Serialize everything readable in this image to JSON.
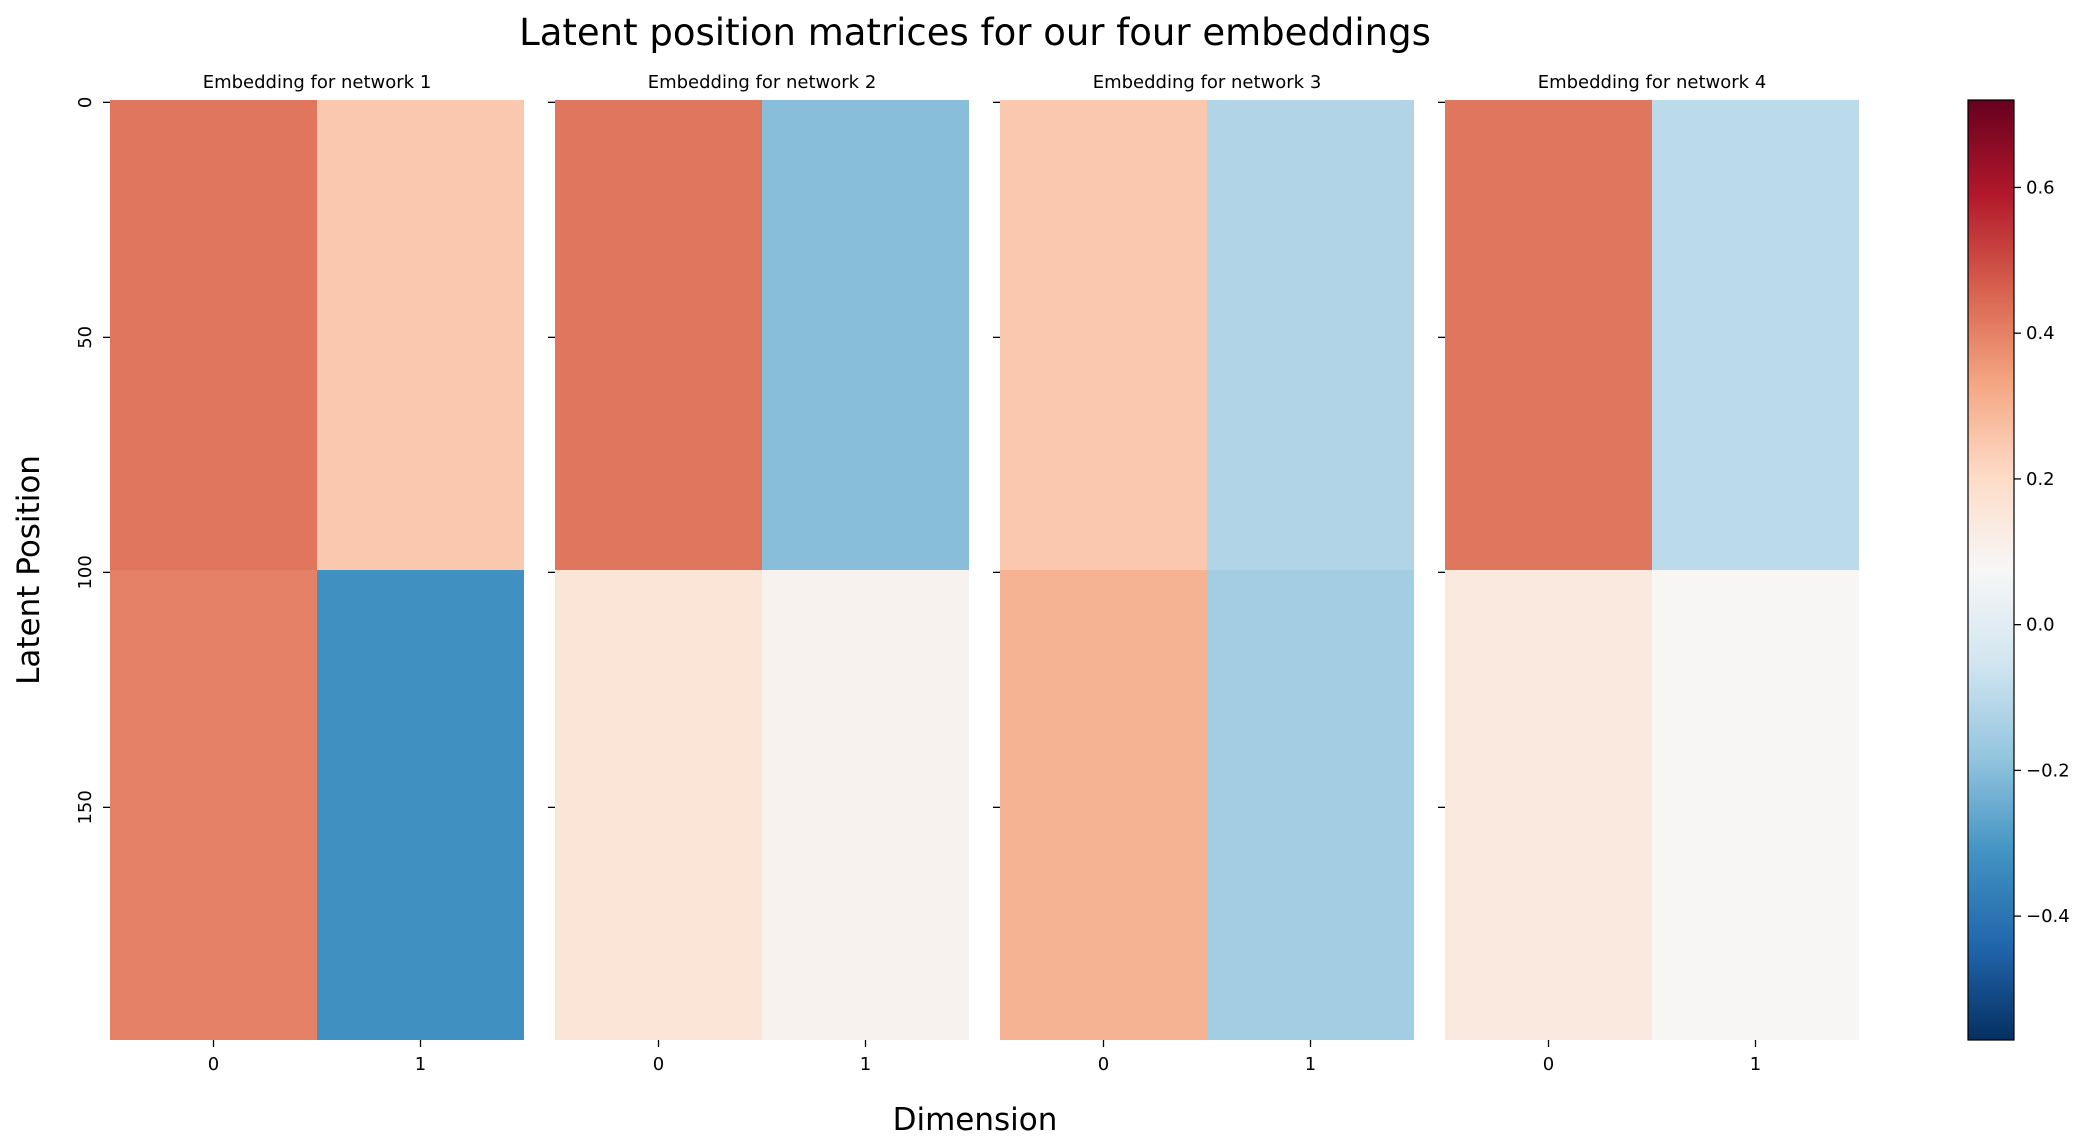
{
  "figure": {
    "title": "Latent position matrices for our four embeddings",
    "xlabel": "Dimension",
    "ylabel": "Latent Position"
  },
  "colors": {
    "colormap": "RdBu_r",
    "stops": [
      "#053061",
      "#2166ac",
      "#4393c3",
      "#92c5de",
      "#d1e5f0",
      "#f7f7f7",
      "#fddbc7",
      "#f4a582",
      "#d6604d",
      "#b2182b",
      "#67001f"
    ]
  },
  "chart_data": {
    "type": "heatmap",
    "rows": 200,
    "row_ticks": [
      0,
      50,
      100,
      150
    ],
    "column_ticks": [
      "0",
      "1"
    ],
    "value_range": [
      -0.57,
      0.72
    ],
    "colorbar": {
      "range": [
        -0.57,
        0.72
      ],
      "ticks": [
        0.6,
        0.4,
        0.2,
        0.0,
        -0.2,
        -0.4
      ],
      "tick_labels": [
        "0.6",
        "0.4",
        "0.2",
        "0.0",
        "−0.2",
        "−0.4"
      ]
    },
    "panels": [
      {
        "title": "Embedding for network 1",
        "cells": [
          {
            "rows": [
              0,
              99
            ],
            "dim0": 0.42,
            "dim1": 0.25
          },
          {
            "rows": [
              100,
              199
            ],
            "dim0": 0.4,
            "dim1": -0.32
          }
        ]
      },
      {
        "title": "Embedding for network 2",
        "cells": [
          {
            "rows": [
              0,
              99
            ],
            "dim0": 0.42,
            "dim1": -0.2
          },
          {
            "rows": [
              100,
              199
            ],
            "dim0": 0.16,
            "dim1": 0.1
          }
        ]
      },
      {
        "title": "Embedding for network 3",
        "cells": [
          {
            "rows": [
              0,
              99
            ],
            "dim0": 0.25,
            "dim1": -0.12
          },
          {
            "rows": [
              100,
              199
            ],
            "dim0": 0.3,
            "dim1": -0.15
          }
        ]
      },
      {
        "title": "Embedding for network 4",
        "cells": [
          {
            "rows": [
              0,
              99
            ],
            "dim0": 0.42,
            "dim1": -0.1
          },
          {
            "rows": [
              100,
              199
            ],
            "dim0": 0.14,
            "dim1": 0.08
          }
        ]
      }
    ]
  }
}
